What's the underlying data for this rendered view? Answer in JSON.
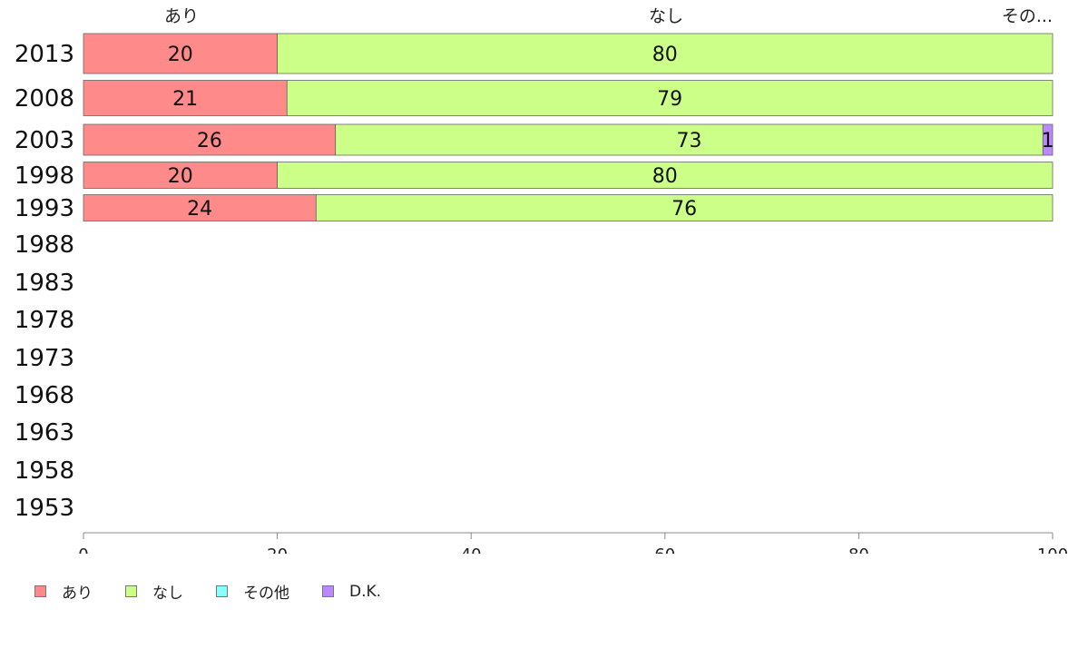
{
  "chart_data": {
    "type": "bar",
    "orientation": "horizontal",
    "stacked": true,
    "categories": [
      "2013",
      "2008",
      "2003",
      "1998",
      "1993",
      "1988",
      "1983",
      "1978",
      "1973",
      "1968",
      "1963",
      "1958",
      "1953"
    ],
    "series": [
      {
        "name": "あり",
        "color": "#ff8a8a",
        "values": [
          20,
          21,
          26,
          20,
          24,
          null,
          null,
          null,
          null,
          null,
          null,
          null,
          null
        ]
      },
      {
        "name": "なし",
        "color": "#ccff88",
        "values": [
          80,
          79,
          73,
          80,
          76,
          null,
          null,
          null,
          null,
          null,
          null,
          null,
          null
        ]
      },
      {
        "name": "その他",
        "color": "#88ffff",
        "values": [
          0,
          0,
          0,
          0,
          0,
          null,
          null,
          null,
          null,
          null,
          null,
          null,
          null
        ]
      },
      {
        "name": "D.K.",
        "color": "#bb88ff",
        "values": [
          0,
          0,
          1,
          0,
          0,
          null,
          null,
          null,
          null,
          null,
          null,
          null,
          null
        ]
      }
    ],
    "top_labels": [
      "あり",
      "なし",
      "その..."
    ],
    "xlim": [
      0,
      100
    ],
    "xticks": [
      0,
      20,
      40,
      60,
      80,
      100
    ],
    "grid": false,
    "legend_position": "bottom-left"
  }
}
